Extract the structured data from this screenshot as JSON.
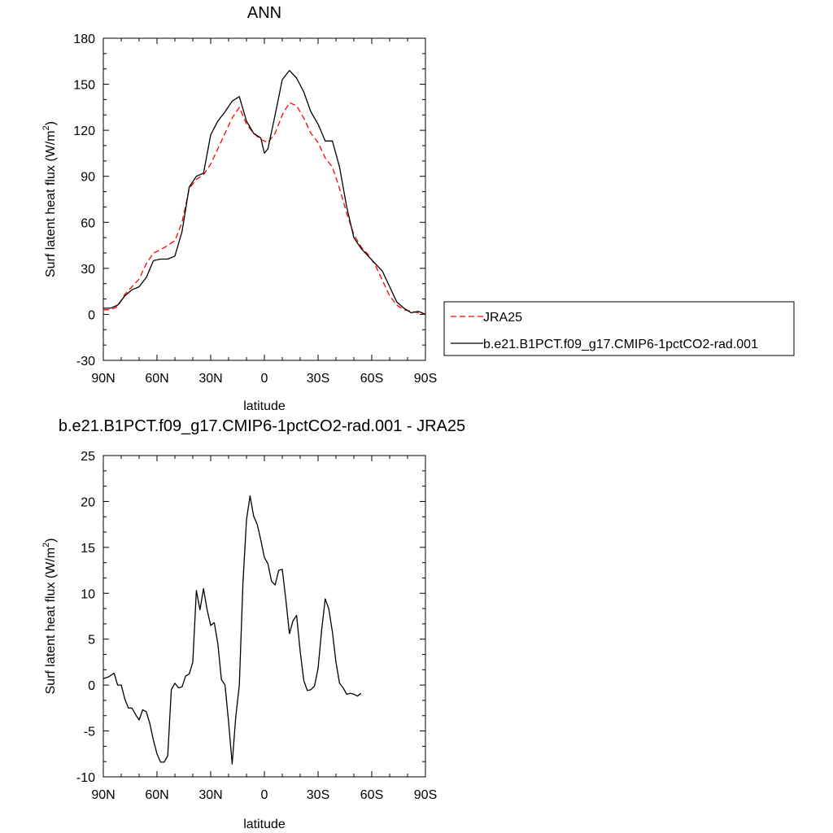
{
  "chart_data": [
    {
      "type": "line",
      "title": "ANN",
      "xlabel": "latitude",
      "ylabel_main": "Surf latent heat flux (W/m",
      "ylabel_sup": "2",
      "ylabel_tail": ")",
      "xlim": [
        90,
        -90
      ],
      "ylim": [
        -30,
        180
      ],
      "yticks": [
        -30,
        0,
        30,
        60,
        90,
        120,
        150,
        180
      ],
      "ytick_labels": [
        "-30",
        "0",
        "30",
        "60",
        "90",
        "120",
        "150",
        "180"
      ],
      "xticks": [
        90,
        60,
        30,
        0,
        -30,
        -60,
        -90
      ],
      "xtick_labels": [
        "90N",
        "60N",
        "30N",
        "0",
        "30S",
        "60S",
        "90S"
      ],
      "legend": "right",
      "series": [
        {
          "name": "JRA25",
          "color": "#ff0000",
          "dash": "dashed",
          "points": [
            [
              90,
              3
            ],
            [
              86,
              3
            ],
            [
              82,
              5
            ],
            [
              78,
              13
            ],
            [
              74,
              18
            ],
            [
              70,
              23
            ],
            [
              66,
              33
            ],
            [
              62,
              40
            ],
            [
              58,
              42
            ],
            [
              54,
              45
            ],
            [
              50,
              48
            ],
            [
              46,
              60
            ],
            [
              42,
              82
            ],
            [
              38,
              88
            ],
            [
              34,
              91
            ],
            [
              30,
              98
            ],
            [
              26,
              108
            ],
            [
              22,
              118
            ],
            [
              18,
              128
            ],
            [
              14,
              135
            ],
            [
              10,
              124
            ],
            [
              6,
              118
            ],
            [
              2,
              114
            ],
            [
              -2,
              112
            ],
            [
              -6,
              118
            ],
            [
              -10,
              130
            ],
            [
              -14,
              138
            ],
            [
              -18,
              136
            ],
            [
              -22,
              128
            ],
            [
              -26,
              118
            ],
            [
              -30,
              112
            ],
            [
              -34,
              102
            ],
            [
              -38,
              96
            ],
            [
              -42,
              82
            ],
            [
              -46,
              66
            ],
            [
              -50,
              52
            ],
            [
              -54,
              44
            ],
            [
              -58,
              39
            ],
            [
              -62,
              32
            ],
            [
              -66,
              22
            ],
            [
              -70,
              12
            ],
            [
              -74,
              6
            ],
            [
              -78,
              3
            ],
            [
              -82,
              2
            ],
            [
              -86,
              1
            ],
            [
              -90,
              0
            ]
          ]
        },
        {
          "name": "b.e21.B1PCT.f09_g17.CMIP6-1pctCO2-rad.001",
          "color": "#000000",
          "dash": "solid",
          "points": [
            [
              90,
              4
            ],
            [
              86,
              4
            ],
            [
              82,
              6
            ],
            [
              78,
              12
            ],
            [
              74,
              16
            ],
            [
              70,
              18
            ],
            [
              66,
              24
            ],
            [
              62,
              35
            ],
            [
              58,
              36
            ],
            [
              54,
              36
            ],
            [
              50,
              38
            ],
            [
              46,
              54
            ],
            [
              42,
              83
            ],
            [
              38,
              90
            ],
            [
              34,
              92
            ],
            [
              30,
              117
            ],
            [
              26,
              126
            ],
            [
              22,
              132
            ],
            [
              18,
              139
            ],
            [
              14,
              142
            ],
            [
              10,
              126
            ],
            [
              6,
              118
            ],
            [
              2,
              115
            ],
            [
              0,
              105
            ],
            [
              -2,
              108
            ],
            [
              -6,
              130
            ],
            [
              -10,
              153
            ],
            [
              -14,
              159
            ],
            [
              -18,
              154
            ],
            [
              -22,
              145
            ],
            [
              -26,
              132
            ],
            [
              -30,
              124
            ],
            [
              -34,
              113
            ],
            [
              -38,
              113
            ],
            [
              -42,
              96
            ],
            [
              -46,
              70
            ],
            [
              -50,
              50
            ],
            [
              -54,
              43
            ],
            [
              -58,
              38
            ],
            [
              -62,
              33
            ],
            [
              -66,
              28
            ],
            [
              -70,
              18
            ],
            [
              -74,
              8
            ],
            [
              -78,
              4
            ],
            [
              -82,
              1
            ],
            [
              -86,
              2
            ],
            [
              -90,
              0
            ]
          ]
        }
      ]
    },
    {
      "type": "line",
      "title": "b.e21.B1PCT.f09_g17.CMIP6-1pctCO2-rad.001 - JRA25",
      "xlabel": "latitude",
      "ylabel_main": "Surf latent heat flux (W/m",
      "ylabel_sup": "2",
      "ylabel_tail": ")",
      "xlim": [
        90,
        -90
      ],
      "ylim": [
        -10,
        25
      ],
      "yticks": [
        -10,
        -5,
        0,
        5,
        10,
        15,
        20,
        25
      ],
      "ytick_labels": [
        "-10",
        "-5",
        "0",
        "5",
        "10",
        "15",
        "20",
        "25"
      ],
      "xticks": [
        90,
        60,
        30,
        0,
        -30,
        -60,
        -90
      ],
      "xtick_labels": [
        "90N",
        "60N",
        "30N",
        "0",
        "30S",
        "60S",
        "90S"
      ],
      "series": [
        {
          "name": "",
          "color": "#000000",
          "dash": "solid",
          "points": [
            [
              90,
              0.7
            ],
            [
              87,
              0.9
            ],
            [
              84,
              1.3
            ],
            [
              82,
              0
            ],
            [
              80,
              0
            ],
            [
              78,
              -1.5
            ],
            [
              76,
              -2.5
            ],
            [
              74,
              -2.5
            ],
            [
              72,
              -3.2
            ],
            [
              70,
              -3.8
            ],
            [
              68,
              -2.7
            ],
            [
              66,
              -2.9
            ],
            [
              64,
              -4.2
            ],
            [
              62,
              -6
            ],
            [
              60,
              -7.5
            ],
            [
              58,
              -8.4
            ],
            [
              56,
              -8.4
            ],
            [
              54,
              -7.7
            ],
            [
              52,
              -0.5
            ],
            [
              50,
              0.2
            ],
            [
              48,
              -0.3
            ],
            [
              46,
              -0.2
            ],
            [
              44,
              1
            ],
            [
              42,
              1.2
            ],
            [
              40,
              2.5
            ],
            [
              38,
              10.3
            ],
            [
              36,
              8.2
            ],
            [
              34,
              10.5
            ],
            [
              32,
              8.2
            ],
            [
              30,
              6.5
            ],
            [
              28,
              6.8
            ],
            [
              26,
              4.5
            ],
            [
              24,
              0.6
            ],
            [
              22,
              0
            ],
            [
              20,
              -4
            ],
            [
              18,
              -8.6
            ],
            [
              16,
              -3.5
            ],
            [
              14,
              0
            ],
            [
              12,
              11
            ],
            [
              10,
              18
            ],
            [
              8,
              20.6
            ],
            [
              6,
              18.4
            ],
            [
              4,
              17.5
            ],
            [
              2,
              15.8
            ],
            [
              0,
              13.9
            ],
            [
              -2,
              13.2
            ],
            [
              -4,
              11.3
            ],
            [
              -6,
              10.9
            ],
            [
              -8,
              12.5
            ],
            [
              -10,
              12.6
            ],
            [
              -12,
              9.3
            ],
            [
              -14,
              5.6
            ],
            [
              -16,
              7
            ],
            [
              -18,
              7.6
            ],
            [
              -20,
              3.7
            ],
            [
              -22,
              0.5
            ],
            [
              -24,
              -0.6
            ],
            [
              -26,
              -0.5
            ],
            [
              -28,
              -0.1
            ],
            [
              -30,
              1.8
            ],
            [
              -32,
              6
            ],
            [
              -34,
              9.4
            ],
            [
              -36,
              8.3
            ],
            [
              -38,
              5.8
            ],
            [
              -40,
              2.5
            ],
            [
              -42,
              0.2
            ],
            [
              -44,
              -0.3
            ],
            [
              -46,
              -1
            ],
            [
              -48,
              -0.9
            ],
            [
              -50,
              -1
            ],
            [
              -52,
              -1.2
            ],
            [
              -54,
              -0.9
            ]
          ]
        }
      ]
    }
  ]
}
